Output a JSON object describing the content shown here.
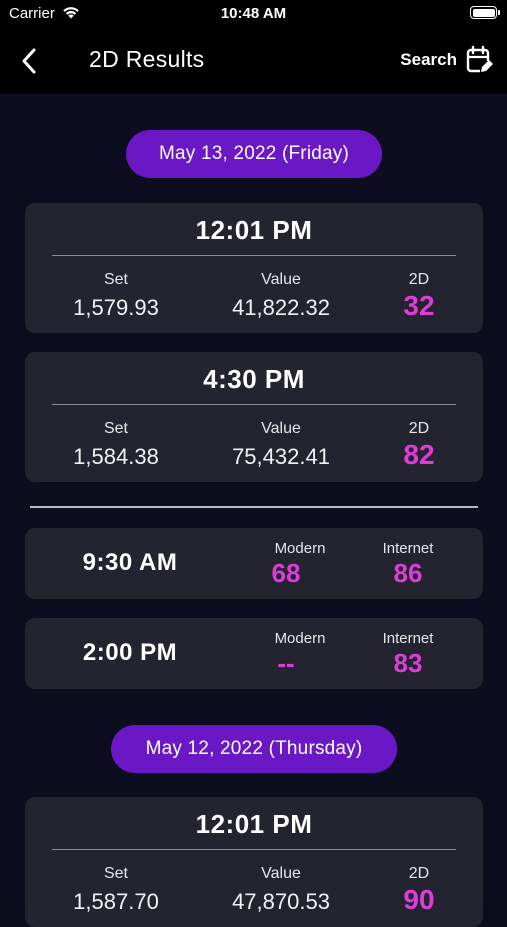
{
  "status_bar": {
    "carrier": "Carrier",
    "time": "10:48 AM"
  },
  "nav": {
    "title": "2D Results",
    "search_label": "Search"
  },
  "days": [
    {
      "date": "May 13, 2022 (Friday)",
      "results": [
        {
          "time": "12:01 PM",
          "set_label": "Set",
          "value_label": "Value",
          "twod_label": "2D",
          "set": "1,579.93",
          "value": "41,822.32",
          "twod": "32"
        },
        {
          "time": "4:30 PM",
          "set_label": "Set",
          "value_label": "Value",
          "twod_label": "2D",
          "set": "1,584.38",
          "value": "75,432.41",
          "twod": "82"
        }
      ],
      "extra": [
        {
          "time": "9:30 AM",
          "modern_label": "Modern",
          "internet_label": "Internet",
          "modern": "68",
          "internet": "86"
        },
        {
          "time": "2:00 PM",
          "modern_label": "Modern",
          "internet_label": "Internet",
          "modern": "--",
          "internet": "83"
        }
      ]
    },
    {
      "date": "May 12, 2022 (Thursday)",
      "results": [
        {
          "time": "12:01 PM",
          "set_label": "Set",
          "value_label": "Value",
          "twod_label": "2D",
          "set": "1,587.70",
          "value": "47,870.53",
          "twod": "90"
        }
      ]
    }
  ],
  "colors": {
    "accent_pill": "#6a18c6",
    "number_highlight": "#e03cdc",
    "card_bg": "#23242f",
    "page_bg": "#0c0d1f"
  }
}
